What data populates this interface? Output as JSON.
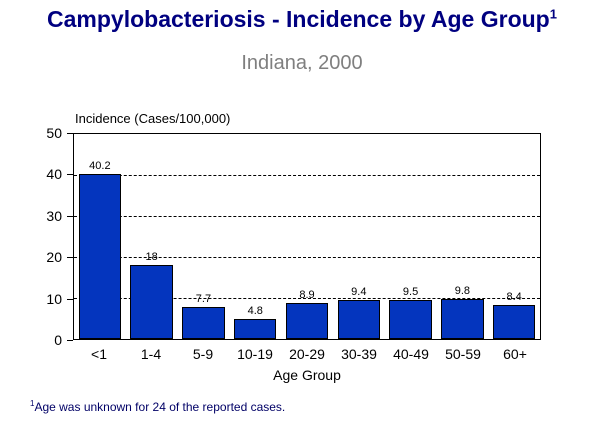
{
  "page": {
    "title": "Campylobacteriosis - Incidence by Age Group",
    "title_superscript": "1",
    "subtitle": "Indiana, 2000",
    "footnote_superscript": "1",
    "footnote_text": "Age was unknown for 24 of the reported cases."
  },
  "colors": {
    "title": "#000080",
    "subtitle": "#7f7f7f",
    "footnote": "#000066",
    "bar_fill": "#0435be",
    "bar_border": "#000000",
    "axis": "#000000"
  },
  "chart_data": {
    "type": "bar",
    "title": "Campylobacteriosis - Incidence by Age Group",
    "subtitle": "Indiana, 2000",
    "categories": [
      "<1",
      "1-4",
      "5-9",
      "10-19",
      "20-29",
      "30-39",
      "40-49",
      "50-59",
      "60+"
    ],
    "values": [
      40.2,
      18,
      7.7,
      4.8,
      8.9,
      9.4,
      9.5,
      9.8,
      8.4
    ],
    "data_labels": [
      "40.2",
      "18",
      "7.7",
      "4.8",
      "8.9",
      "9.4",
      "9.5",
      "9.8",
      "8.4"
    ],
    "xlabel": "Age Group",
    "ylabel": "Incidence (Cases/100,000)",
    "ylim": [
      0,
      50
    ],
    "yticks": [
      0,
      10,
      20,
      30,
      40,
      50
    ],
    "gridlines": [
      10,
      20,
      30,
      40
    ],
    "grid_style": "dashed",
    "legend": "none",
    "bar_color": "#0435be"
  }
}
